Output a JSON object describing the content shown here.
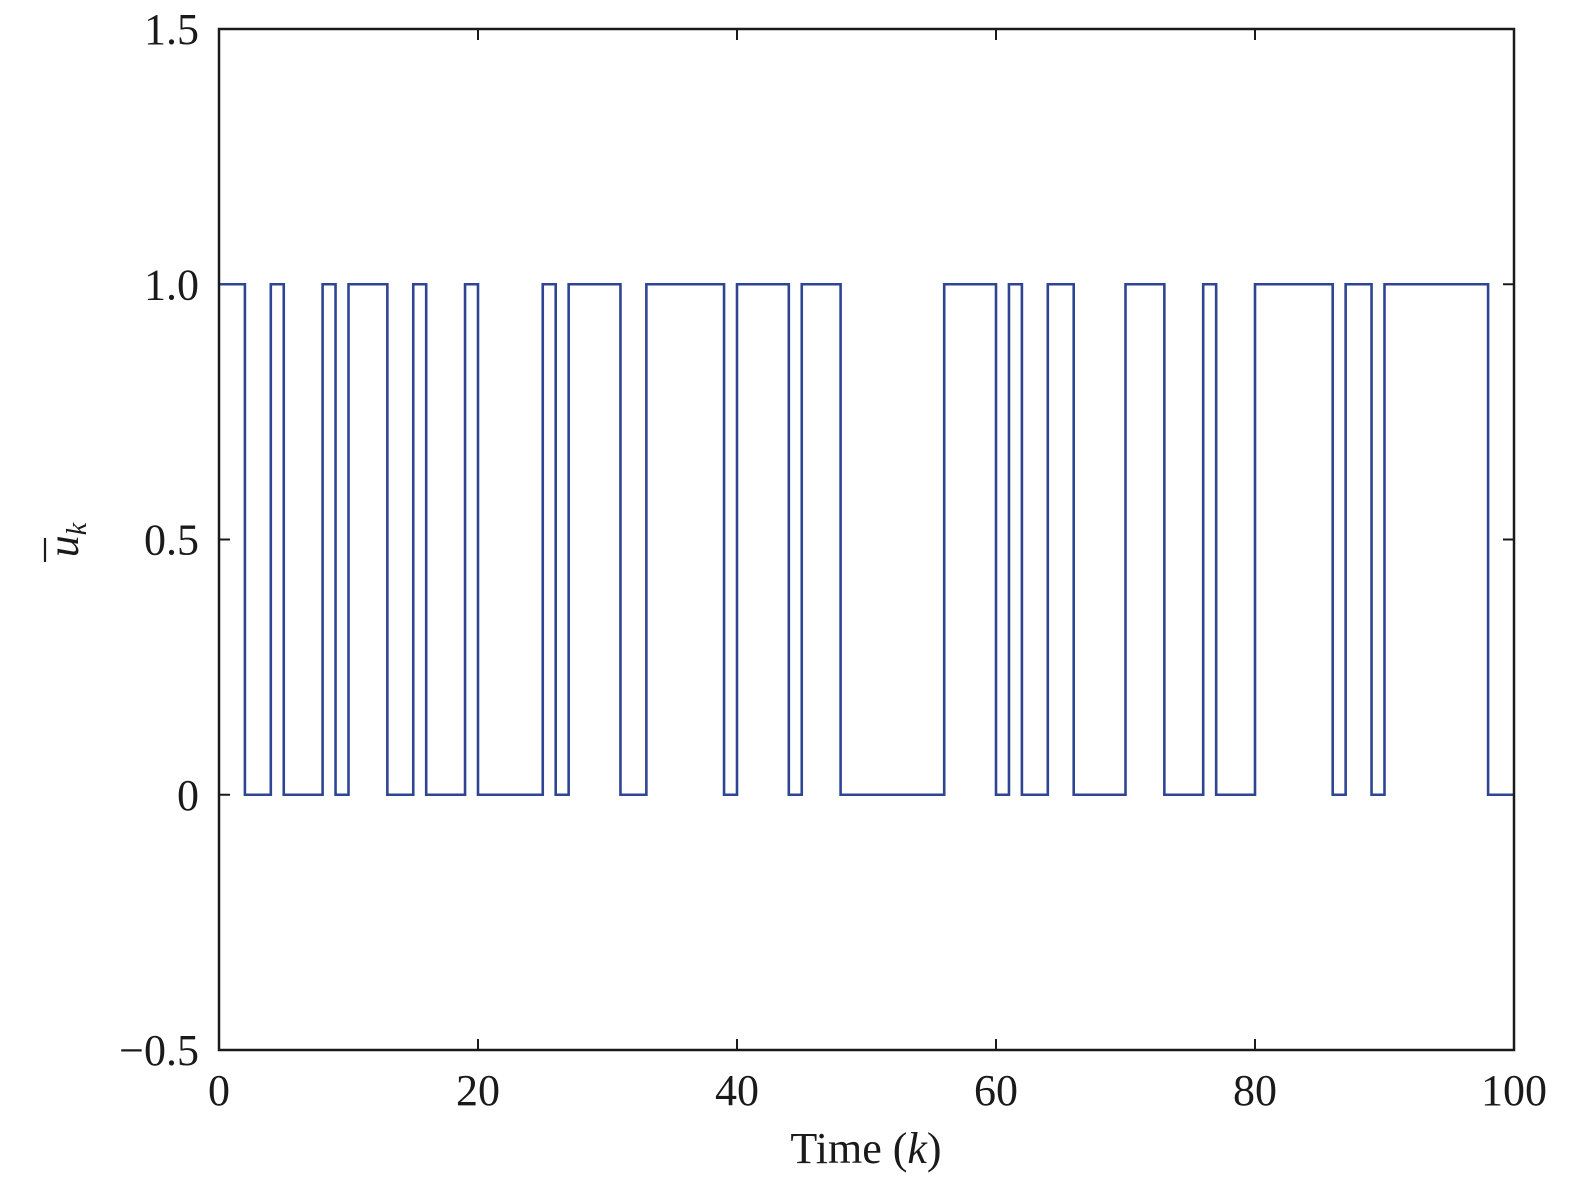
{
  "chart_data": {
    "type": "line",
    "step": "post",
    "xlabel": {
      "prefix": "Time (",
      "var": "k",
      "suffix": ")"
    },
    "ylabel": {
      "base": "u",
      "subscript": "k",
      "overline": true
    },
    "xlim": [
      0,
      100
    ],
    "ylim": [
      -0.5,
      1.5
    ],
    "xticks": [
      0,
      20,
      40,
      60,
      80,
      100
    ],
    "xtick_labels": [
      "0",
      "20",
      "40",
      "60",
      "80",
      "100"
    ],
    "yticks": [
      -0.5,
      0,
      0.5,
      1.0,
      1.5
    ],
    "ytick_labels": [
      "−0.5",
      "0",
      "0.5",
      "1.0",
      "1.5"
    ],
    "grid": false,
    "series": [
      {
        "color": "#2e4594",
        "x": [
          0,
          2,
          4,
          5,
          8,
          9,
          10,
          13,
          15,
          16,
          19,
          20,
          25,
          26,
          27,
          31,
          33,
          39,
          40,
          44,
          45,
          48,
          56,
          60,
          61,
          62,
          64,
          66,
          70,
          73,
          76,
          77,
          80,
          86,
          87,
          89,
          90,
          98,
          100
        ],
        "y": [
          1,
          0,
          1,
          0,
          1,
          0,
          1,
          0,
          1,
          0,
          1,
          0,
          1,
          0,
          1,
          0,
          1,
          0,
          1,
          0,
          1,
          0,
          1,
          0,
          1,
          0,
          1,
          0,
          1,
          0,
          1,
          0,
          1,
          0,
          1,
          0,
          1,
          0,
          0
        ]
      }
    ]
  }
}
